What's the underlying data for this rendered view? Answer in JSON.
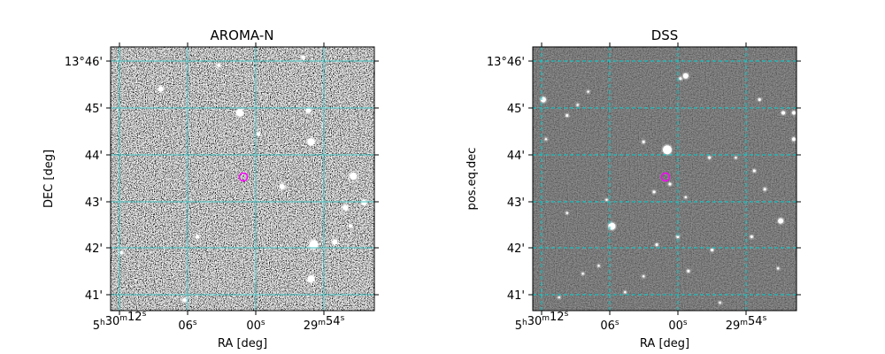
{
  "chart_data": [
    {
      "type": "image",
      "title": "AROMA-N",
      "xlabel": "RA [deg]",
      "ylabel": "DEC [deg]",
      "x_tick_labels": [
        {
          "h": "5",
          "m": "30",
          "s": "12",
          "sec_only": false
        },
        {
          "s": "06",
          "sec_only": true
        },
        {
          "s": "00",
          "sec_only": true
        },
        {
          "h": "",
          "m": "29",
          "s": "54",
          "sec_only": false
        }
      ],
      "y_tick_labels": [
        "13°46'",
        "45'",
        "44'",
        "43'",
        "42'",
        "41'"
      ],
      "grid": true,
      "grid_color": "#40c0c0",
      "grid_style": "solid",
      "background": "noisy",
      "marker": {
        "shape": "circle",
        "color": "#ff00ff"
      },
      "stars": [
        [
          0.19,
          0.16,
          3
        ],
        [
          0.49,
          0.25,
          4
        ],
        [
          0.75,
          0.24,
          3
        ],
        [
          0.76,
          0.36,
          4
        ],
        [
          0.41,
          0.07,
          2
        ],
        [
          0.73,
          0.04,
          2
        ],
        [
          0.65,
          0.53,
          3
        ],
        [
          0.92,
          0.49,
          4
        ],
        [
          0.96,
          0.59,
          3
        ],
        [
          0.89,
          0.61,
          3
        ],
        [
          0.77,
          0.75,
          5
        ],
        [
          0.85,
          0.74,
          3
        ],
        [
          0.76,
          0.88,
          4
        ],
        [
          0.04,
          0.78,
          2
        ],
        [
          0.28,
          0.96,
          2
        ],
        [
          0.91,
          0.68,
          2
        ],
        [
          0.33,
          0.72,
          2
        ],
        [
          0.56,
          0.33,
          2
        ]
      ]
    },
    {
      "type": "image",
      "title": "DSS",
      "xlabel": "RA [deg]",
      "ylabel": "pos.eq.dec",
      "x_tick_labels": [
        {
          "h": "5",
          "m": "30",
          "s": "12",
          "sec_only": false
        },
        {
          "s": "06",
          "sec_only": true
        },
        {
          "s": "00",
          "sec_only": true
        },
        {
          "h": "",
          "m": "29",
          "s": "54",
          "sec_only": false
        }
      ],
      "y_tick_labels": [
        "13°46'",
        "45'",
        "44'",
        "43'",
        "42'",
        "41'"
      ],
      "grid": true,
      "grid_color": "#00d0d0",
      "grid_style": "dashed",
      "background": "dark",
      "marker": {
        "shape": "circle",
        "color": "#ff00ff"
      },
      "stars": [
        [
          0.58,
          0.11,
          3
        ],
        [
          0.51,
          0.39,
          5
        ],
        [
          0.04,
          0.2,
          3
        ],
        [
          0.3,
          0.68,
          4
        ],
        [
          0.94,
          0.66,
          3
        ],
        [
          0.95,
          0.25,
          2
        ],
        [
          0.99,
          0.35,
          2
        ],
        [
          0.99,
          0.25,
          2
        ],
        [
          0.56,
          0.12,
          1.5
        ],
        [
          0.13,
          0.26,
          1.5
        ],
        [
          0.17,
          0.22,
          1.2
        ],
        [
          0.42,
          0.36,
          1.5
        ],
        [
          0.67,
          0.42,
          1.5
        ],
        [
          0.77,
          0.42,
          1.2
        ],
        [
          0.84,
          0.47,
          1.5
        ],
        [
          0.88,
          0.54,
          1.5
        ],
        [
          0.46,
          0.55,
          1.5
        ],
        [
          0.52,
          0.52,
          1.5
        ],
        [
          0.58,
          0.57,
          1.2
        ],
        [
          0.28,
          0.58,
          1.2
        ],
        [
          0.13,
          0.63,
          1.2
        ],
        [
          0.47,
          0.75,
          1.5
        ],
        [
          0.55,
          0.72,
          1.5
        ],
        [
          0.68,
          0.77,
          1.5
        ],
        [
          0.83,
          0.72,
          1.5
        ],
        [
          0.19,
          0.86,
          1.2
        ],
        [
          0.25,
          0.83,
          1.2
        ],
        [
          0.42,
          0.87,
          1.2
        ],
        [
          0.59,
          0.85,
          1.5
        ],
        [
          0.71,
          0.97,
          1.2
        ],
        [
          0.1,
          0.95,
          1.2
        ],
        [
          0.21,
          0.17,
          1.2
        ],
        [
          0.86,
          0.2,
          1.5
        ],
        [
          0.93,
          0.84,
          1.2
        ],
        [
          0.35,
          0.93,
          1.2
        ],
        [
          0.05,
          0.35,
          1.2
        ]
      ]
    }
  ]
}
